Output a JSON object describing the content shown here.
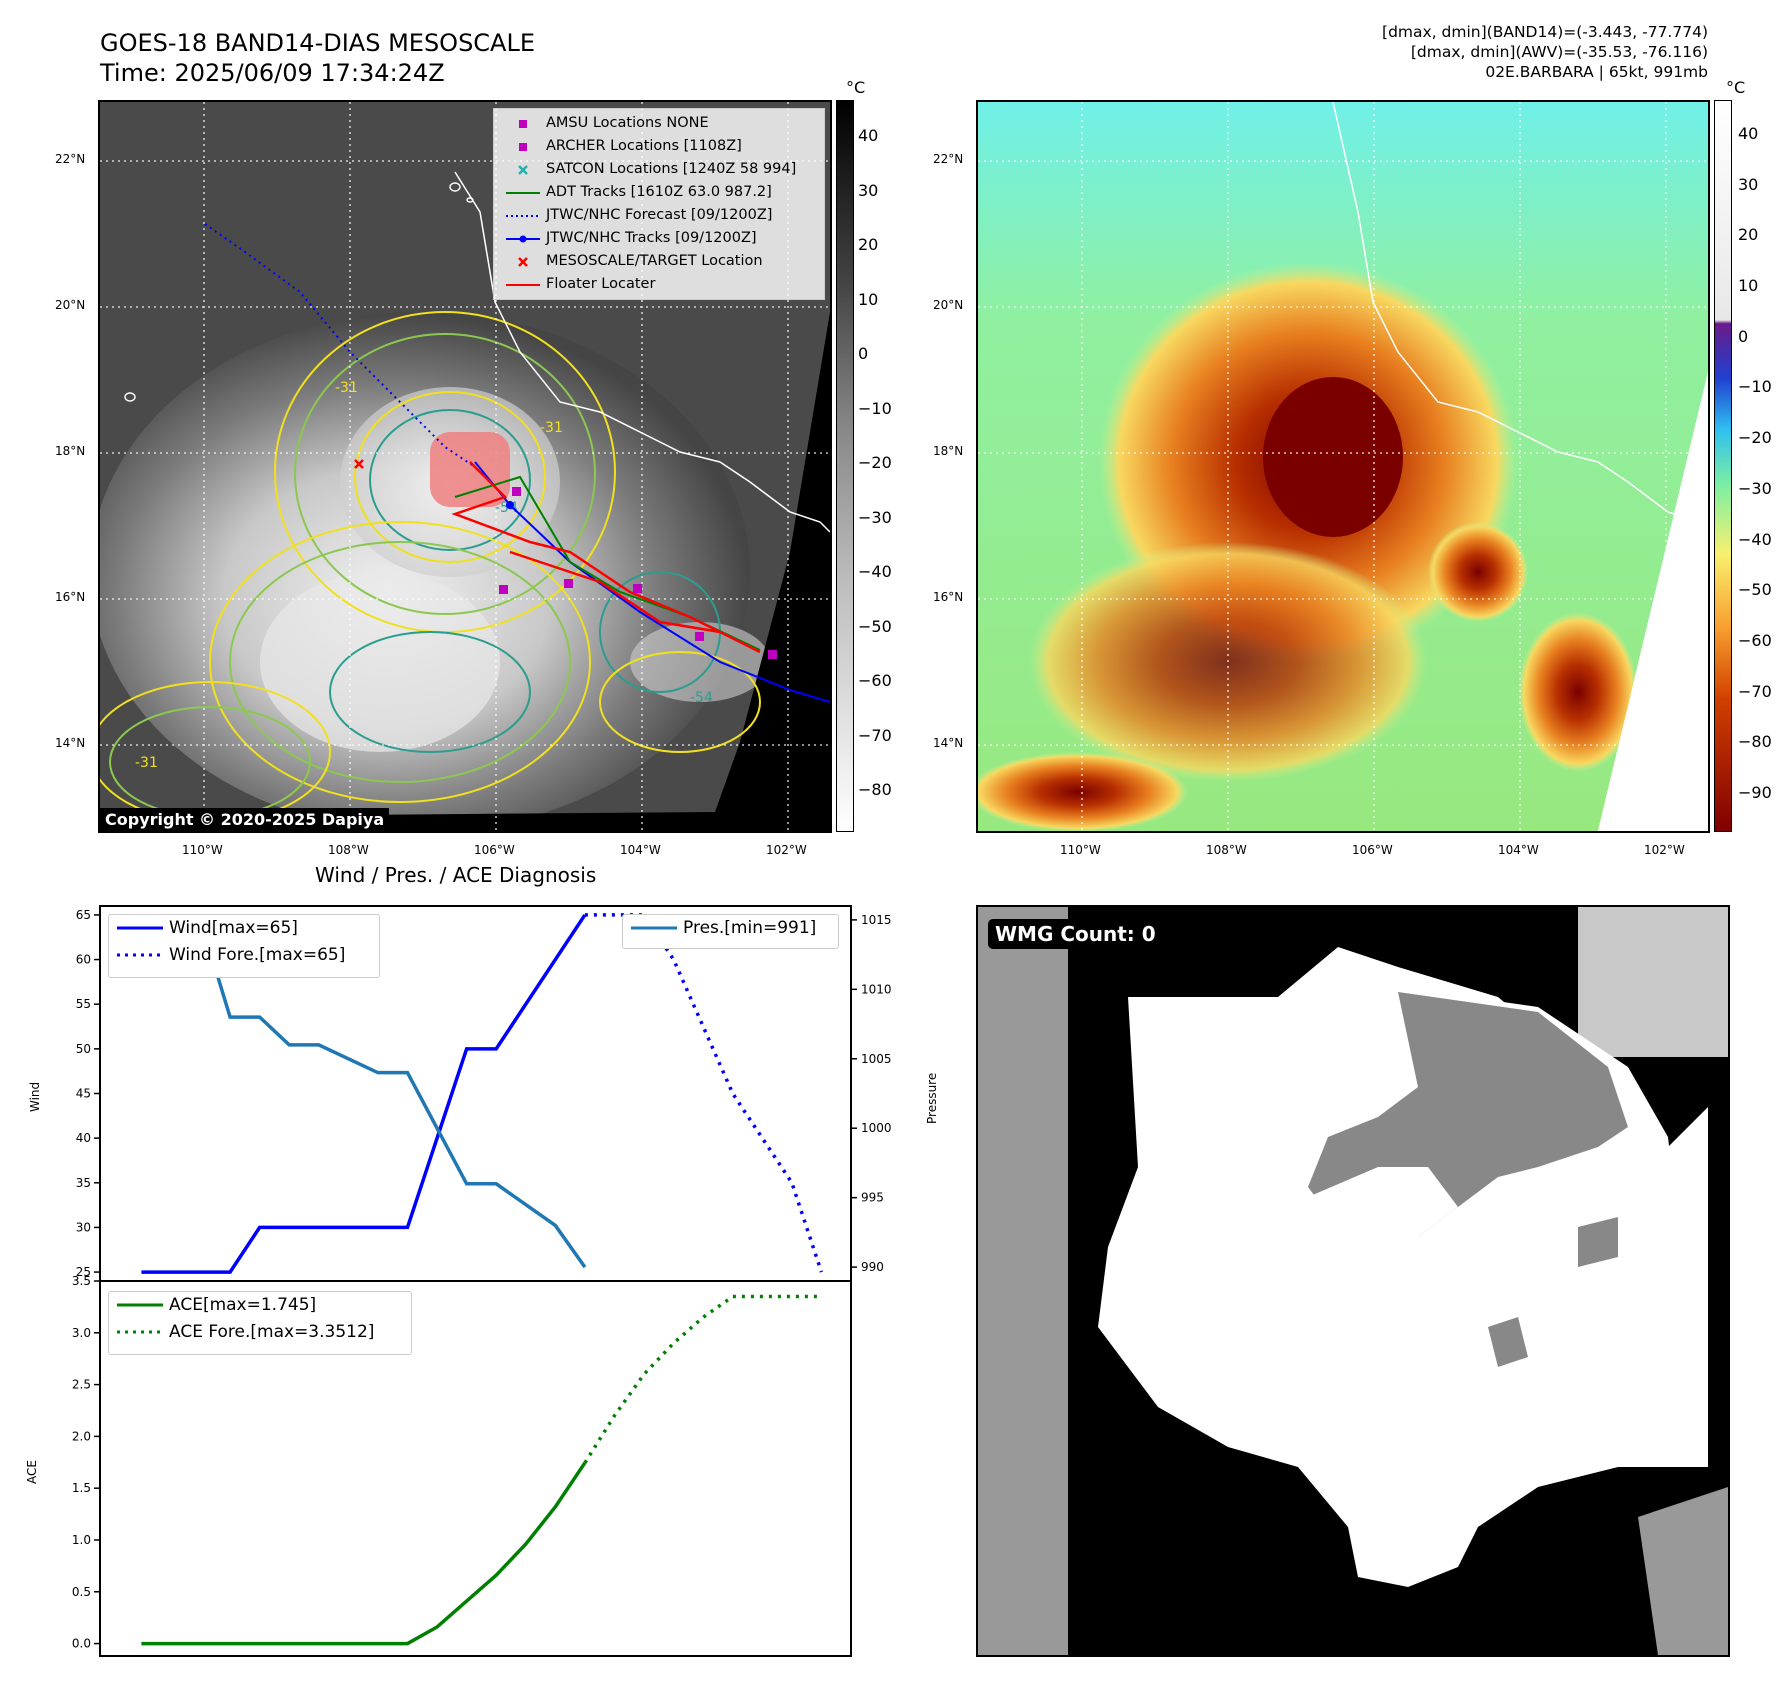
{
  "header": {
    "title_line1": "GOES-18 BAND14-DIAS MESOSCALE",
    "title_line2": "Time: 2025/06/09 17:34:24Z",
    "info_line1": "[dmax, dmin](BAND14)=(-3.443, -77.774)",
    "info_line2": "[dmax, dmin](AWV)=(-35.53, -76.116)",
    "info_line3": "02E.BARBARA | 65kt, 991mb"
  },
  "map": {
    "lat_labels": [
      "22°N",
      "20°N",
      "18°N",
      "16°N",
      "14°N"
    ],
    "lon_labels": [
      "110°W",
      "108°W",
      "106°W",
      "104°W",
      "102°W"
    ],
    "copyright": "Copyright © 2020-2025 Dapiya",
    "contour_label": "-31",
    "contour_labels_misc": [
      "-31",
      "-31",
      "-54",
      "-54"
    ],
    "legend": [
      {
        "label": "AMSU Locations NONE",
        "color": "#c000c0",
        "marker": "square"
      },
      {
        "label": "ARCHER Locations [1108Z]",
        "color": "#c000c0",
        "marker": "square"
      },
      {
        "label": "SATCON Locations [1240Z 58 994]",
        "color": "#20b0b0",
        "marker": "x"
      },
      {
        "label": "ADT Tracks [1610Z 63.0 987.2]",
        "color": "#008000",
        "marker": "line"
      },
      {
        "label": "JTWC/NHC Forecast [09/1200Z]",
        "color": "#0000ff",
        "marker": "dotted"
      },
      {
        "label": "JTWC/NHC Tracks [09/1200Z]",
        "color": "#0000ff",
        "marker": "line-dot"
      },
      {
        "label": "MESOSCALE/TARGET Location",
        "color": "#ff0000",
        "marker": "x"
      },
      {
        "label": "Floater Locater",
        "color": "#ff0000",
        "marker": "line"
      }
    ]
  },
  "colorbar_left": {
    "unit": "°C",
    "ticks": [
      "40",
      "30",
      "20",
      "10",
      "0",
      "−10",
      "−20",
      "−30",
      "−40",
      "−50",
      "−60",
      "−70",
      "−80"
    ]
  },
  "colorbar_right": {
    "unit": "°C",
    "ticks": [
      "40",
      "30",
      "20",
      "10",
      "0",
      "−10",
      "−20",
      "−30",
      "−40",
      "−50",
      "−60",
      "−70",
      "−80",
      "−90"
    ]
  },
  "diagnosis": {
    "title": "Wind / Pres. / ACE Diagnosis",
    "wmg_label": "WMG Count: 0"
  },
  "chart_data": [
    {
      "type": "line",
      "title": "Wind / Pres. / ACE Diagnosis",
      "ylabel": "Wind",
      "ylabel2": "Pressure",
      "ylim": [
        24,
        66
      ],
      "ylim2": [
        989,
        1016
      ],
      "yticks": [
        "65",
        "60",
        "55",
        "50",
        "45",
        "40",
        "35",
        "30",
        "25"
      ],
      "yticks2": [
        "1015",
        "1010",
        "1005",
        "1000",
        "995",
        "990"
      ],
      "x": [
        0,
        1,
        2,
        3,
        4,
        5,
        6,
        7,
        8,
        9,
        10,
        11,
        12,
        13,
        14,
        15,
        16,
        17,
        18,
        19,
        20,
        21,
        22,
        23
      ],
      "series": [
        {
          "name": "Wind[max=65]",
          "color": "#0000ff",
          "style": "solid",
          "x": [
            0,
            3,
            4,
            9,
            11,
            12,
            15
          ],
          "values": [
            25,
            25,
            30,
            30,
            50,
            50,
            65
          ]
        },
        {
          "name": "Wind Fore.[max=65]",
          "color": "#0000ff",
          "style": "dotted",
          "x": [
            15,
            17,
            18,
            20,
            22,
            23
          ],
          "values": [
            65,
            65,
            60,
            45,
            35,
            25
          ]
        },
        {
          "name": "Pres.[min=991]",
          "color": "#1f77b4",
          "style": "solid",
          "axis": "right",
          "x": [
            0,
            2,
            3,
            4,
            5,
            6,
            8,
            9,
            11,
            12,
            14,
            15
          ],
          "values": [
            1015,
            1015,
            1008,
            1008,
            1006,
            1006,
            1004,
            1004,
            996,
            996,
            993,
            990
          ]
        }
      ]
    },
    {
      "type": "line",
      "ylabel": "ACE",
      "ylim": [
        -0.12,
        3.5
      ],
      "yticks": [
        "3.5",
        "3.0",
        "2.5",
        "2.0",
        "1.5",
        "1.0",
        "0.5",
        "0.0"
      ],
      "x": [
        0,
        1,
        2,
        3,
        4,
        5,
        6,
        7,
        8,
        9,
        10,
        11,
        12,
        13,
        14,
        15,
        16,
        17,
        18,
        19,
        20,
        21,
        22,
        23
      ],
      "series": [
        {
          "name": "ACE[max=1.745]",
          "color": "#008000",
          "style": "solid",
          "x": [
            0,
            9,
            10,
            11,
            12,
            13,
            14,
            15
          ],
          "values": [
            0,
            0,
            0.16,
            0.41,
            0.66,
            0.96,
            1.32,
            1.745
          ]
        },
        {
          "name": "ACE Fore.[max=3.3512]",
          "color": "#008000",
          "style": "dotted",
          "x": [
            15,
            16,
            17,
            18,
            19,
            20,
            21,
            23
          ],
          "values": [
            1.745,
            2.2,
            2.6,
            2.9,
            3.15,
            3.35,
            3.35,
            3.35
          ]
        }
      ]
    }
  ]
}
